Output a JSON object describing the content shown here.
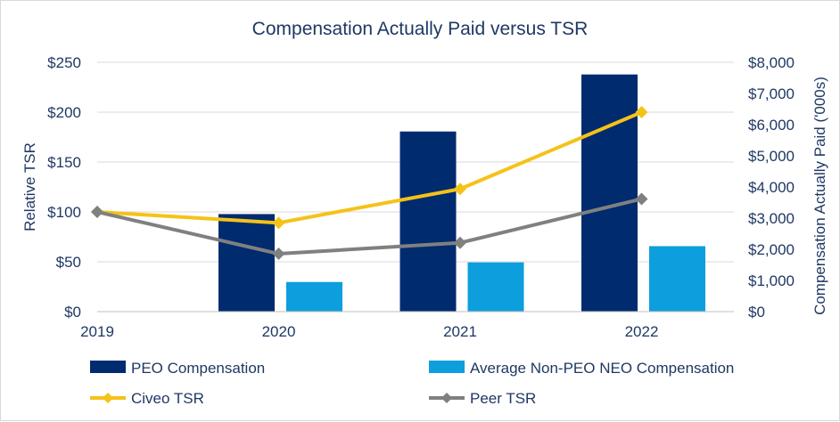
{
  "chart_data": {
    "type": "bar+line",
    "title": "Compensation Actually Paid versus TSR",
    "categories": [
      "2019",
      "2020",
      "2021",
      "2022"
    ],
    "left_axis": {
      "label": "Relative TSR",
      "min": 0,
      "max": 250,
      "step": 50,
      "tick_labels": [
        "$0",
        "$50",
        "$100",
        "$150",
        "$200",
        "$250"
      ]
    },
    "right_axis": {
      "label": "Compensation Actually Paid ('000s)",
      "min": 0,
      "max": 8000,
      "step": 1000,
      "tick_labels": [
        "$0",
        "$1,000",
        "$2,000",
        "$3,000",
        "$4,000",
        "$5,000",
        "$6,000",
        "$7,000",
        "$8,000"
      ]
    },
    "gridlines": true,
    "legend_position": "bottom",
    "bar_series": [
      {
        "name": "PEO Compensation",
        "color": "#002B6F",
        "axis": "right",
        "values": [
          null,
          3130,
          5780,
          7610
        ]
      },
      {
        "name": "Average Non-PEO NEO Compensation",
        "color": "#0C9EDD",
        "axis": "right",
        "values": [
          null,
          950,
          1580,
          2100
        ]
      }
    ],
    "line_series": [
      {
        "name": "Civeo TSR",
        "color": "#F5C218",
        "axis": "left",
        "values": [
          100,
          89,
          123,
          200
        ]
      },
      {
        "name": "Peer TSR",
        "color": "#808080",
        "axis": "left",
        "values": [
          100,
          58,
          69,
          113
        ]
      }
    ]
  }
}
